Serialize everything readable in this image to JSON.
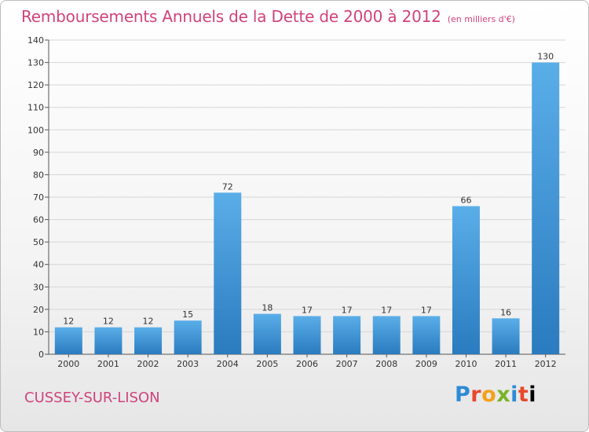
{
  "chart_data": {
    "type": "bar",
    "title": "Remboursements Annuels de la Dette de 2000 à 2012",
    "subtitle": "(en milliers d'€)",
    "categories": [
      "2000",
      "2001",
      "2002",
      "2003",
      "2004",
      "2005",
      "2006",
      "2007",
      "2008",
      "2009",
      "2010",
      "2011",
      "2012"
    ],
    "values": [
      12,
      12,
      12,
      15,
      72,
      18,
      17,
      17,
      17,
      17,
      66,
      16,
      130
    ],
    "ylim": [
      0,
      140
    ],
    "yticks": [
      0,
      10,
      20,
      30,
      40,
      50,
      60,
      70,
      80,
      90,
      100,
      110,
      120,
      130,
      140
    ],
    "grid": true,
    "bar_color_top": "#5aaee8",
    "bar_color_bottom": "#2a7bbf"
  },
  "footer": {
    "town": "CUSSEY-SUR-LISON",
    "brand": [
      "P",
      "r",
      "o",
      "x",
      "i",
      "t",
      "i"
    ]
  },
  "colors": {
    "title": "#d0437a",
    "grid": "#d6d6d6",
    "axis": "#555555"
  }
}
